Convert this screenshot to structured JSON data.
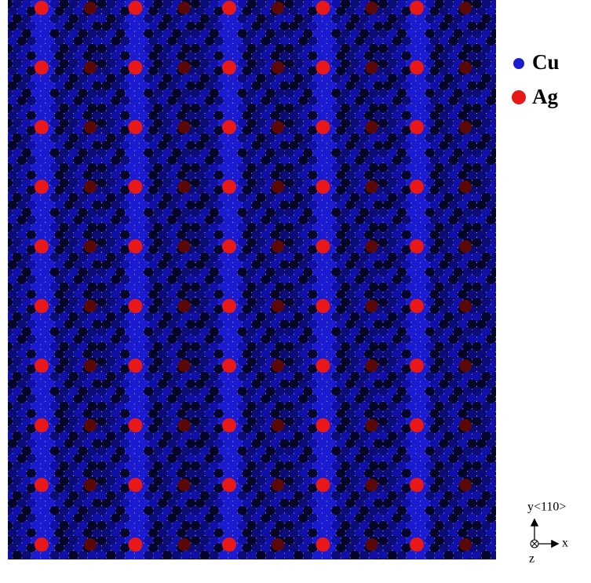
{
  "legend": [
    {
      "label": "Cu",
      "color": "#1a1ad0"
    },
    {
      "label": "Ag",
      "color": "#e81818"
    }
  ],
  "axes": {
    "y": "y<110>",
    "x": "x",
    "z": "z"
  }
}
